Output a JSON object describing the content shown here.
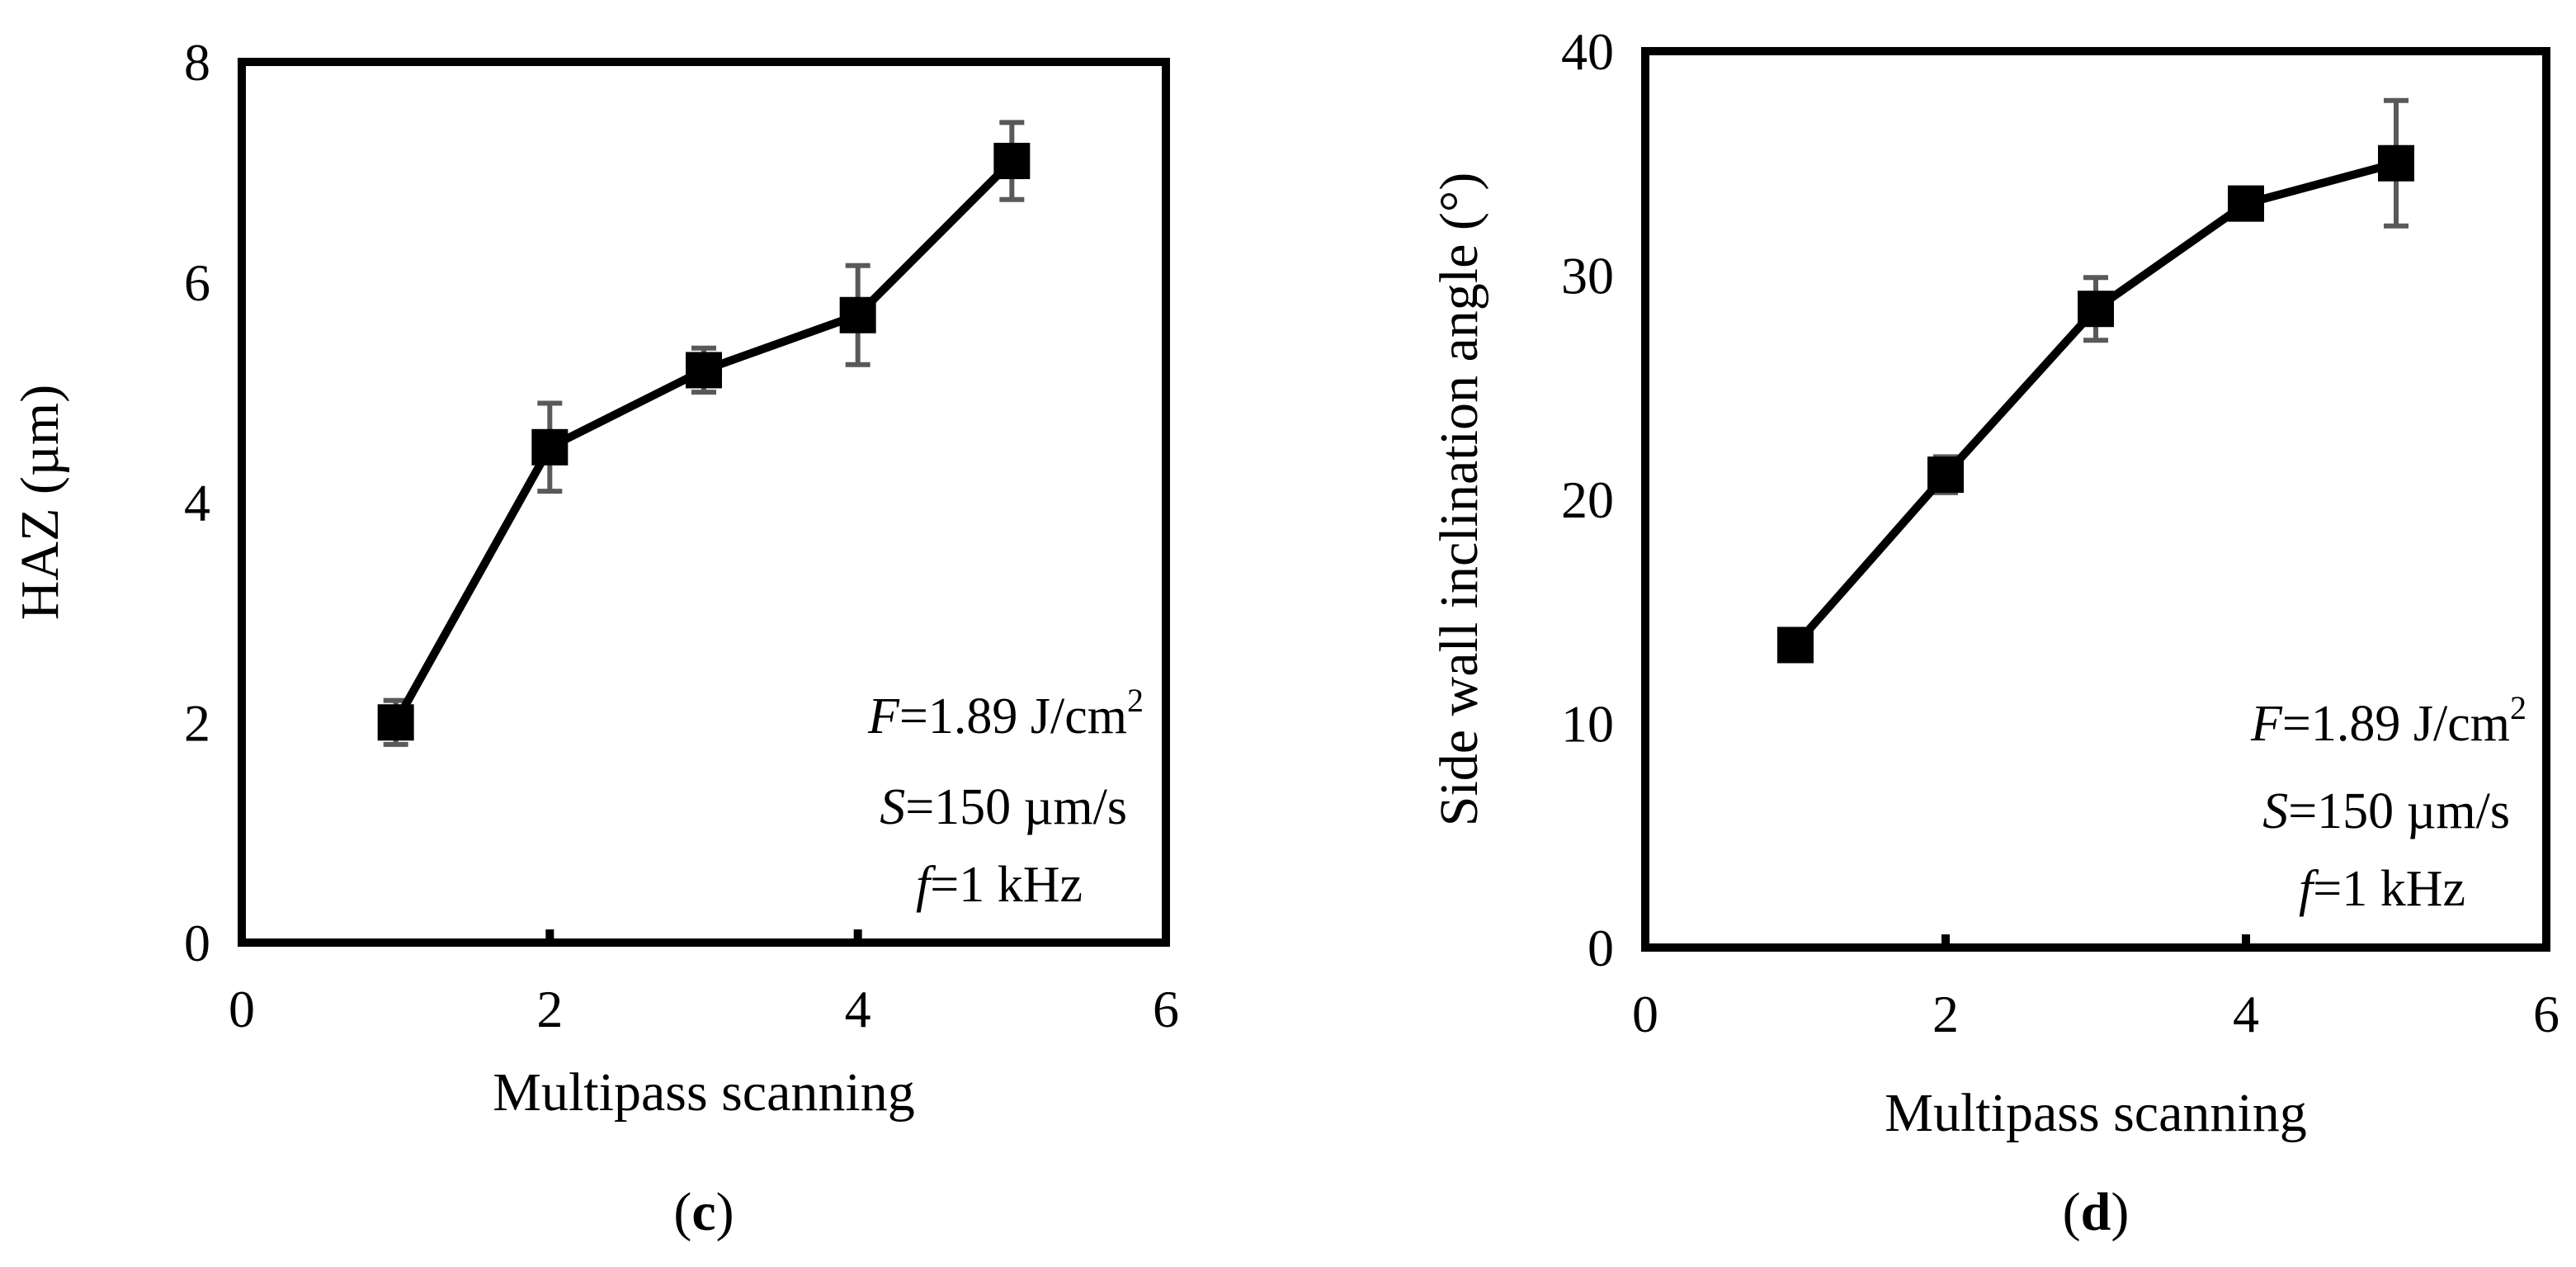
{
  "chart_data": [
    {
      "type": "line",
      "panel_label": "c",
      "ylabel": "HAZ (µm)",
      "xlabel": "Multipass scanning",
      "xlim": [
        0,
        6
      ],
      "ylim": [
        0,
        8
      ],
      "xticks": [
        "0",
        "2",
        "4",
        "6"
      ],
      "yticks": [
        "0",
        "2",
        "4",
        "6",
        "8"
      ],
      "grid": false,
      "series": [
        {
          "name": "HAZ",
          "x": [
            1,
            2,
            3,
            4,
            5
          ],
          "y": [
            2.0,
            4.5,
            5.2,
            5.7,
            7.1
          ],
          "err": [
            0.2,
            0.4,
            0.2,
            0.45,
            0.35
          ],
          "marker": "square",
          "color": "#000000"
        }
      ],
      "annotation": {
        "f_var": "F",
        "f_text": "=1.89 J/cm",
        "f_sup": "2",
        "s_var": "S",
        "s_text": "=150 µm/s",
        "freq_var": "f",
        "freq_text": "=1 kHz"
      }
    },
    {
      "type": "line",
      "panel_label": "d",
      "ylabel": "Side wall inclination angle (°)",
      "xlabel": "Multipass scanning",
      "xlim": [
        0,
        6
      ],
      "ylim": [
        0,
        40
      ],
      "xticks": [
        "0",
        "2",
        "4",
        "6"
      ],
      "yticks": [
        "0",
        "10",
        "20",
        "30",
        "40"
      ],
      "grid": false,
      "series": [
        {
          "name": "Side wall inclination angle",
          "x": [
            1,
            2,
            3,
            4,
            5
          ],
          "y": [
            13.5,
            21.1,
            28.5,
            33.2,
            35.0
          ],
          "err": [
            0.4,
            0.8,
            1.4,
            0.5,
            2.8
          ],
          "marker": "square",
          "color": "#000000"
        }
      ],
      "annotation": {
        "f_var": "F",
        "f_text": "=1.89 J/cm",
        "f_sup": "2",
        "s_var": "S",
        "s_text": "=150 µm/s",
        "freq_var": "f",
        "freq_text": "=1 kHz"
      }
    }
  ]
}
